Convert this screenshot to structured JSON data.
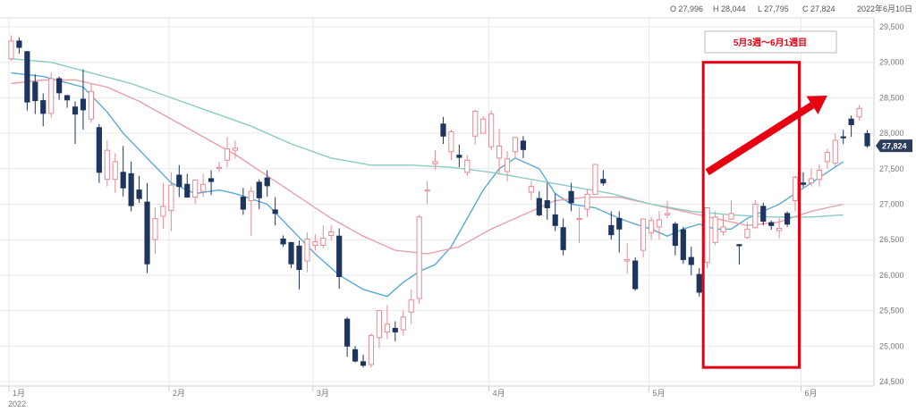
{
  "header": {
    "open": "O 27,996",
    "high": "H 28,044",
    "low": "L 27,795",
    "close": "C 27,824",
    "date": "2022年6月10日"
  },
  "annotation": {
    "label": "5月3週〜6月1週目",
    "color": "#e60012"
  },
  "last_price_label": "27,824",
  "colors": {
    "up": "#e88a93",
    "down": "#1e3560",
    "ma_short": "#5aaad6",
    "ma_mid": "#e8a0a8",
    "ma_long": "#88ccc4",
    "grid": "#e9e9e9",
    "highlight": "#e60012"
  },
  "chart_data": {
    "type": "candlestick",
    "y_ticks": [
      "29,500",
      "29,000",
      "28,500",
      "28,000",
      "27,500",
      "27,000",
      "26,500",
      "26,000",
      "25,500",
      "25,000",
      "24,500"
    ],
    "ylim": [
      24500,
      29500
    ],
    "x_ticks": [
      {
        "label": "1月",
        "index": 0
      },
      {
        "label": "2月",
        "index": 20
      },
      {
        "label": "3月",
        "index": 38
      },
      {
        "label": "4月",
        "index": 60
      },
      {
        "label": "5月",
        "index": 80
      },
      {
        "label": "6月",
        "index": 99
      }
    ],
    "year_label": "2022",
    "candles": [
      [
        29050,
        29380,
        29020,
        29300
      ],
      [
        29300,
        29350,
        29120,
        29210
      ],
      [
        29150,
        29160,
        28320,
        28440
      ],
      [
        28720,
        28830,
        28270,
        28460
      ],
      [
        28460,
        28560,
        28100,
        28280
      ],
      [
        28280,
        28860,
        28220,
        28770
      ],
      [
        28770,
        28800,
        28470,
        28570
      ],
      [
        28530,
        28540,
        28360,
        28470
      ],
      [
        28370,
        28450,
        27850,
        28270
      ],
      [
        28480,
        28900,
        28050,
        28330
      ],
      [
        28200,
        28700,
        28150,
        28590
      ],
      [
        28080,
        28130,
        27300,
        27450
      ],
      [
        27350,
        27900,
        27250,
        27760
      ],
      [
        27350,
        27720,
        27160,
        27600
      ],
      [
        27450,
        27820,
        27110,
        27230
      ],
      [
        27430,
        27600,
        26900,
        26980
      ],
      [
        27200,
        27400,
        27020,
        27080
      ],
      [
        27030,
        27300,
        26030,
        26160
      ],
      [
        26500,
        26950,
        26300,
        26800
      ],
      [
        26830,
        27300,
        26650,
        26970
      ],
      [
        26910,
        27450,
        26620,
        27270
      ],
      [
        27410,
        27550,
        27100,
        27250
      ],
      [
        27280,
        27430,
        27090,
        27100
      ],
      [
        27100,
        27350,
        27000,
        27340
      ],
      [
        27180,
        27430,
        27100,
        27280
      ],
      [
        27360,
        27480,
        27130,
        27320
      ],
      [
        27520,
        27600,
        27450,
        27520
      ],
      [
        27620,
        27950,
        27520,
        27780
      ],
      [
        27760,
        27900,
        27640,
        27790
      ],
      [
        27100,
        27230,
        26850,
        26930
      ],
      [
        27050,
        27250,
        26550,
        27180
      ],
      [
        27310,
        27350,
        26930,
        27090
      ],
      [
        27370,
        27480,
        27110,
        27260
      ],
      [
        26920,
        27100,
        26700,
        26870
      ],
      [
        26510,
        26560,
        26400,
        26440
      ],
      [
        26460,
        26470,
        26100,
        26160
      ],
      [
        26410,
        26490,
        25800,
        26080
      ],
      [
        26200,
        26600,
        26040,
        26510
      ],
      [
        26420,
        26580,
        26350,
        26470
      ],
      [
        26420,
        26700,
        26380,
        26520
      ],
      [
        26560,
        26700,
        26490,
        26610
      ],
      [
        26550,
        26660,
        25810,
        25980
      ],
      [
        25380,
        25410,
        24850,
        25000
      ],
      [
        24950,
        25000,
        24770,
        24790
      ],
      [
        24780,
        24880,
        24700,
        24730
      ],
      [
        24740,
        25180,
        24700,
        25150
      ],
      [
        25120,
        25450,
        24970,
        25500
      ],
      [
        25200,
        25580,
        25100,
        25310
      ],
      [
        25250,
        25350,
        25070,
        25200
      ],
      [
        25230,
        25500,
        25150,
        25410
      ],
      [
        25480,
        25800,
        25310,
        25650
      ],
      [
        25670,
        26850,
        25600,
        26820
      ],
      [
        27190,
        27330,
        27000,
        27200
      ],
      [
        27570,
        27760,
        27490,
        27600
      ],
      [
        28130,
        28230,
        27850,
        27960
      ],
      [
        27740,
        28050,
        27620,
        28020
      ],
      [
        27690,
        27840,
        27520,
        27660
      ],
      [
        27450,
        27690,
        27400,
        27620
      ],
      [
        27960,
        28330,
        27840,
        28310
      ],
      [
        28000,
        28240,
        28030,
        28200
      ],
      [
        27810,
        28320,
        27760,
        28270
      ],
      [
        27650,
        28070,
        27420,
        27820
      ],
      [
        27460,
        27750,
        27320,
        27640
      ],
      [
        27740,
        27950,
        27650,
        27940
      ],
      [
        27890,
        27960,
        27650,
        27770
      ],
      [
        27170,
        27330,
        27060,
        27250
      ],
      [
        27080,
        27180,
        26830,
        26850
      ],
      [
        27050,
        27300,
        26780,
        26950
      ],
      [
        26850,
        27150,
        26620,
        26700
      ],
      [
        26670,
        26800,
        26280,
        26360
      ],
      [
        27180,
        27300,
        26900,
        27020
      ],
      [
        26800,
        26950,
        26450,
        26800
      ],
      [
        26930,
        27210,
        26820,
        27140
      ],
      [
        27140,
        27560,
        27130,
        27560
      ],
      [
        27350,
        27480,
        27260,
        27300
      ],
      [
        26700,
        26900,
        26500,
        26570
      ],
      [
        26800,
        26900,
        26320,
        26650
      ],
      [
        26200,
        26450,
        26020,
        26220
      ],
      [
        26200,
        26250,
        25780,
        25810
      ],
      [
        26350,
        26800,
        26250,
        26790
      ],
      [
        26600,
        26820,
        26500,
        26770
      ],
      [
        26680,
        26900,
        26500,
        26780
      ],
      [
        26850,
        27050,
        26800,
        26870
      ],
      [
        26720,
        26750,
        26280,
        26420
      ],
      [
        26640,
        26680,
        26160,
        26220
      ],
      [
        26250,
        26400,
        26000,
        26150
      ],
      [
        26010,
        26100,
        25700,
        25760
      ],
      [
        26180,
        26950,
        26100,
        26950
      ],
      [
        26460,
        26900,
        26420,
        26820
      ],
      [
        26610,
        26850,
        26560,
        26680
      ],
      [
        26790,
        27050,
        26780,
        26870
      ],
      [
        26430,
        26440,
        26150,
        26420
      ],
      [
        26530,
        26750,
        26510,
        26650
      ],
      [
        26670,
        27060,
        26660,
        27000
      ],
      [
        26970,
        27020,
        26700,
        26760
      ],
      [
        26740,
        26770,
        26640,
        26700
      ],
      [
        26630,
        26810,
        26520,
        26660
      ],
      [
        26870,
        26900,
        26680,
        26720
      ],
      [
        27050,
        27400,
        26900,
        27380
      ],
      [
        27300,
        27450,
        27240,
        27280
      ],
      [
        27300,
        27500,
        27250,
        27360
      ],
      [
        27350,
        27560,
        27250,
        27480
      ],
      [
        27600,
        27780,
        27500,
        27730
      ],
      [
        27580,
        28000,
        27540,
        27900
      ],
      [
        27950,
        28050,
        27850,
        27940
      ],
      [
        28200,
        28250,
        27950,
        28120
      ],
      [
        28230,
        28400,
        28180,
        28350
      ],
      [
        27996,
        28044,
        27795,
        27824
      ]
    ],
    "moving_averages": [
      {
        "color_key": "ma_short",
        "points": [
          [
            0,
            28850
          ],
          [
            4,
            28800
          ],
          [
            9,
            28650
          ],
          [
            12,
            28300
          ],
          [
            14,
            28000
          ],
          [
            17,
            27650
          ],
          [
            20,
            27300
          ],
          [
            23,
            27150
          ],
          [
            26,
            27200
          ],
          [
            28,
            27150
          ],
          [
            32,
            27000
          ],
          [
            35,
            26650
          ],
          [
            38,
            26300
          ],
          [
            41,
            26000
          ],
          [
            44,
            25800
          ],
          [
            47,
            25700
          ],
          [
            49,
            25900
          ],
          [
            51,
            26050
          ],
          [
            53,
            26150
          ],
          [
            55,
            26400
          ],
          [
            57,
            26800
          ],
          [
            59,
            27200
          ],
          [
            61,
            27500
          ],
          [
            63,
            27650
          ],
          [
            66,
            27500
          ],
          [
            68,
            27150
          ],
          [
            70,
            27000
          ],
          [
            73,
            26950
          ],
          [
            76,
            26800
          ],
          [
            78,
            26720
          ],
          [
            80,
            26650
          ],
          [
            82,
            26550
          ],
          [
            84,
            26650
          ],
          [
            86,
            26720
          ],
          [
            88,
            26650
          ],
          [
            90,
            26650
          ],
          [
            92,
            26800
          ],
          [
            94,
            26900
          ],
          [
            96,
            27000
          ],
          [
            98,
            27150
          ],
          [
            100,
            27300
          ],
          [
            102,
            27450
          ],
          [
            104,
            27600
          ]
        ]
      },
      {
        "color_key": "ma_mid",
        "points": [
          [
            0,
            28700
          ],
          [
            4,
            28750
          ],
          [
            8,
            28750
          ],
          [
            12,
            28650
          ],
          [
            16,
            28450
          ],
          [
            20,
            28200
          ],
          [
            24,
            27950
          ],
          [
            28,
            27700
          ],
          [
            32,
            27400
          ],
          [
            36,
            27100
          ],
          [
            40,
            26800
          ],
          [
            44,
            26550
          ],
          [
            48,
            26350
          ],
          [
            52,
            26300
          ],
          [
            56,
            26400
          ],
          [
            60,
            26650
          ],
          [
            64,
            26850
          ],
          [
            68,
            27050
          ],
          [
            72,
            27100
          ],
          [
            76,
            27100
          ],
          [
            80,
            27000
          ],
          [
            84,
            26900
          ],
          [
            88,
            26800
          ],
          [
            92,
            26700
          ],
          [
            96,
            26750
          ],
          [
            100,
            26900
          ],
          [
            104,
            27000
          ]
        ]
      },
      {
        "color_key": "ma_long",
        "points": [
          [
            0,
            29050
          ],
          [
            5,
            29000
          ],
          [
            10,
            28850
          ],
          [
            15,
            28700
          ],
          [
            20,
            28500
          ],
          [
            25,
            28300
          ],
          [
            30,
            28100
          ],
          [
            35,
            27850
          ],
          [
            40,
            27650
          ],
          [
            45,
            27550
          ],
          [
            50,
            27550
          ],
          [
            55,
            27520
          ],
          [
            60,
            27450
          ],
          [
            65,
            27350
          ],
          [
            70,
            27250
          ],
          [
            75,
            27150
          ],
          [
            80,
            27000
          ],
          [
            85,
            26900
          ],
          [
            90,
            26850
          ],
          [
            95,
            26820
          ],
          [
            100,
            26820
          ],
          [
            104,
            26850
          ]
        ]
      }
    ],
    "highlight_range": {
      "start_index": 87,
      "end_index": 98,
      "y_top": 29000,
      "y_bottom": 24700
    },
    "trend_arrow": {
      "from": [
        87,
        27450
      ],
      "to": [
        102,
        28530
      ]
    }
  }
}
